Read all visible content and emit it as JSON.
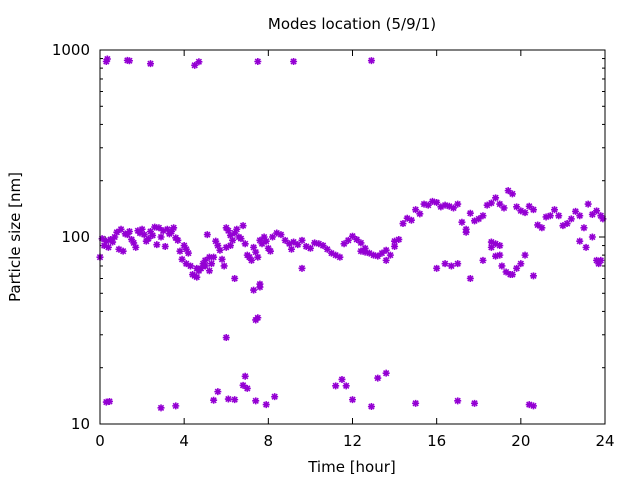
{
  "chart_data": {
    "type": "scatter",
    "title": "Modes location (5/9/1)",
    "xlabel": "Time [hour]",
    "ylabel": "Particle size [nm]",
    "xlim": [
      0,
      24
    ],
    "ylim": [
      10,
      1000
    ],
    "yscale": "log",
    "grid": false,
    "legend": "none",
    "x_ticks": [
      0,
      4,
      8,
      12,
      16,
      20,
      24
    ],
    "x_tick_labels": [
      "0",
      "4",
      "8",
      "12",
      "16",
      "20",
      "24"
    ],
    "y_ticks": [
      10,
      100,
      1000
    ],
    "y_tick_labels": [
      "10",
      "100",
      "1000"
    ],
    "marker": "asterisk",
    "series": [
      {
        "color": "#9400d3",
        "points": [
          [
            0.0,
            78
          ],
          [
            0.1,
            98
          ],
          [
            0.2,
            90
          ],
          [
            0.3,
            95
          ],
          [
            0.4,
            88
          ],
          [
            0.5,
            97
          ],
          [
            0.6,
            94
          ],
          [
            0.7,
            100
          ],
          [
            0.8,
            106
          ],
          [
            0.9,
            86
          ],
          [
            1.0,
            110
          ],
          [
            1.1,
            84
          ],
          [
            1.2,
            104
          ],
          [
            1.3,
            103
          ],
          [
            1.4,
            107
          ],
          [
            1.5,
            97
          ],
          [
            1.6,
            93
          ],
          [
            1.7,
            88
          ],
          [
            1.8,
            108
          ],
          [
            1.9,
            105
          ],
          [
            2.0,
            110
          ],
          [
            2.1,
            103
          ],
          [
            2.2,
            95
          ],
          [
            2.3,
            98
          ],
          [
            2.4,
            107
          ],
          [
            2.5,
            102
          ],
          [
            2.6,
            113
          ],
          [
            2.7,
            91
          ],
          [
            2.8,
            112
          ],
          [
            2.9,
            100
          ],
          [
            3.0,
            108
          ],
          [
            3.1,
            89
          ],
          [
            3.2,
            110
          ],
          [
            3.3,
            104
          ],
          [
            3.4,
            107
          ],
          [
            3.5,
            112
          ],
          [
            3.6,
            99
          ],
          [
            3.7,
            96
          ],
          [
            3.8,
            84
          ],
          [
            3.9,
            76
          ],
          [
            4.0,
            90
          ],
          [
            4.1,
            86
          ],
          [
            4.2,
            82
          ],
          [
            4.3,
            70
          ],
          [
            4.4,
            63
          ],
          [
            4.5,
            62
          ],
          [
            4.6,
            61
          ],
          [
            4.7,
            66
          ],
          [
            4.8,
            68
          ],
          [
            4.9,
            72
          ],
          [
            5.0,
            75
          ],
          [
            5.1,
            103
          ],
          [
            5.2,
            66
          ],
          [
            5.3,
            72
          ],
          [
            5.4,
            78
          ],
          [
            5.5,
            95
          ],
          [
            5.6,
            90
          ],
          [
            5.7,
            85
          ],
          [
            5.8,
            76
          ],
          [
            5.9,
            70
          ],
          [
            6.0,
            112
          ],
          [
            6.1,
            108
          ],
          [
            6.2,
            102
          ],
          [
            6.3,
            96
          ],
          [
            6.4,
            105
          ],
          [
            6.5,
            110
          ],
          [
            6.6,
            100
          ],
          [
            6.7,
            98
          ],
          [
            6.8,
            115
          ],
          [
            6.9,
            92
          ],
          [
            7.0,
            80
          ],
          [
            7.1,
            78
          ],
          [
            7.2,
            75
          ],
          [
            7.3,
            88
          ],
          [
            7.4,
            83
          ],
          [
            7.5,
            78
          ],
          [
            7.6,
            96
          ],
          [
            7.7,
            92
          ],
          [
            7.8,
            100
          ],
          [
            7.9,
            95
          ],
          [
            8.0,
            87
          ],
          [
            8.1,
            84
          ],
          [
            8.2,
            100
          ],
          [
            8.4,
            105
          ],
          [
            8.6,
            103
          ],
          [
            8.8,
            96
          ],
          [
            9.0,
            92
          ],
          [
            9.2,
            94
          ],
          [
            9.4,
            91
          ],
          [
            9.6,
            96
          ],
          [
            9.8,
            89
          ],
          [
            10.0,
            87
          ],
          [
            10.2,
            93
          ],
          [
            10.4,
            92
          ],
          [
            10.6,
            90
          ],
          [
            10.8,
            86
          ],
          [
            11.0,
            82
          ],
          [
            11.2,
            80
          ],
          [
            11.4,
            78
          ],
          [
            11.6,
            92
          ],
          [
            11.8,
            96
          ],
          [
            12.0,
            101
          ],
          [
            12.2,
            97
          ],
          [
            12.4,
            84
          ],
          [
            12.6,
            83
          ],
          [
            12.8,
            82
          ],
          [
            13.0,
            80
          ],
          [
            13.2,
            79
          ],
          [
            13.4,
            82
          ],
          [
            13.6,
            85
          ],
          [
            13.8,
            80
          ],
          [
            14.0,
            89
          ],
          [
            14.2,
            97
          ],
          [
            14.4,
            118
          ],
          [
            14.6,
            126
          ],
          [
            14.8,
            123
          ],
          [
            15.0,
            140
          ],
          [
            15.2,
            133
          ],
          [
            15.4,
            150
          ],
          [
            15.6,
            148
          ],
          [
            15.8,
            155
          ],
          [
            16.0,
            153
          ],
          [
            16.2,
            145
          ],
          [
            16.4,
            148
          ],
          [
            16.6,
            146
          ],
          [
            16.8,
            143
          ],
          [
            17.0,
            150
          ],
          [
            17.2,
            120
          ],
          [
            17.4,
            106
          ],
          [
            17.6,
            134
          ],
          [
            17.8,
            122
          ],
          [
            18.0,
            125
          ],
          [
            18.2,
            130
          ],
          [
            18.4,
            148
          ],
          [
            18.6,
            152
          ],
          [
            18.8,
            162
          ],
          [
            19.0,
            150
          ],
          [
            19.2,
            143
          ],
          [
            19.4,
            177
          ],
          [
            19.6,
            170
          ],
          [
            19.8,
            145
          ],
          [
            20.0,
            138
          ],
          [
            20.2,
            135
          ],
          [
            20.4,
            146
          ],
          [
            20.6,
            140
          ],
          [
            20.8,
            116
          ],
          [
            21.0,
            112
          ],
          [
            21.2,
            128
          ],
          [
            21.4,
            130
          ],
          [
            21.6,
            140
          ],
          [
            21.8,
            130
          ],
          [
            22.0,
            115
          ],
          [
            22.2,
            118
          ],
          [
            22.4,
            125
          ],
          [
            22.6,
            137
          ],
          [
            22.8,
            130
          ],
          [
            23.0,
            112
          ],
          [
            23.2,
            150
          ],
          [
            23.4,
            132
          ],
          [
            23.6,
            138
          ],
          [
            23.8,
            130
          ],
          [
            23.9,
            125
          ],
          [
            0.3,
            868
          ],
          [
            0.35,
            895
          ],
          [
            1.3,
            880
          ],
          [
            1.4,
            876
          ],
          [
            2.4,
            845
          ],
          [
            4.5,
            828
          ],
          [
            4.7,
            865
          ],
          [
            7.5,
            868
          ],
          [
            9.2,
            868
          ],
          [
            12.9,
            878
          ],
          [
            0.3,
            13.1
          ],
          [
            0.45,
            13.2
          ],
          [
            2.9,
            12.2
          ],
          [
            3.6,
            12.5
          ],
          [
            5.4,
            13.4
          ],
          [
            5.6,
            14.9
          ],
          [
            6.1,
            13.6
          ],
          [
            6.4,
            13.5
          ],
          [
            6.8,
            16.1
          ],
          [
            7.0,
            15.5
          ],
          [
            7.4,
            13.3
          ],
          [
            7.9,
            12.7
          ],
          [
            8.3,
            14
          ],
          [
            11.2,
            16
          ],
          [
            11.5,
            17.3
          ],
          [
            11.7,
            16
          ],
          [
            12.0,
            13.5
          ],
          [
            12.9,
            12.4
          ],
          [
            13.2,
            17.6
          ],
          [
            13.6,
            18.7
          ],
          [
            15.0,
            12.9
          ],
          [
            17.0,
            13.3
          ],
          [
            17.8,
            12.9
          ],
          [
            20.4,
            12.7
          ],
          [
            20.6,
            12.5
          ],
          [
            6.0,
            29
          ],
          [
            6.4,
            60
          ],
          [
            6.9,
            18
          ],
          [
            7.3,
            52
          ],
          [
            7.6,
            54
          ],
          [
            7.6,
            56
          ],
          [
            7.5,
            37
          ],
          [
            7.4,
            36
          ],
          [
            9.6,
            68
          ],
          [
            13.6,
            75
          ],
          [
            16.0,
            68
          ],
          [
            16.4,
            72
          ],
          [
            16.7,
            70
          ],
          [
            17.0,
            72
          ],
          [
            17.6,
            60
          ],
          [
            18.2,
            75
          ],
          [
            18.6,
            88
          ],
          [
            18.8,
            92
          ],
          [
            19.0,
            80
          ],
          [
            19.1,
            70
          ],
          [
            19.3,
            65
          ],
          [
            19.5,
            63
          ],
          [
            19.6,
            63
          ],
          [
            19.8,
            68
          ],
          [
            20.0,
            72
          ],
          [
            20.2,
            80
          ],
          [
            20.6,
            62
          ],
          [
            22.8,
            95
          ],
          [
            23.1,
            88
          ],
          [
            23.4,
            100
          ],
          [
            23.6,
            75
          ],
          [
            23.7,
            72
          ],
          [
            23.8,
            75
          ],
          [
            4.1,
            72
          ],
          [
            4.6,
            68
          ],
          [
            5.0,
            70
          ],
          [
            5.2,
            78
          ],
          [
            6.0,
            88
          ],
          [
            6.2,
            90
          ],
          [
            9.1,
            86
          ],
          [
            12.4,
            93
          ],
          [
            12.6,
            87
          ],
          [
            14.0,
            95
          ],
          [
            17.4,
            110
          ],
          [
            18.6,
            94
          ],
          [
            18.8,
            79
          ],
          [
            19.0,
            90
          ]
        ]
      }
    ]
  }
}
